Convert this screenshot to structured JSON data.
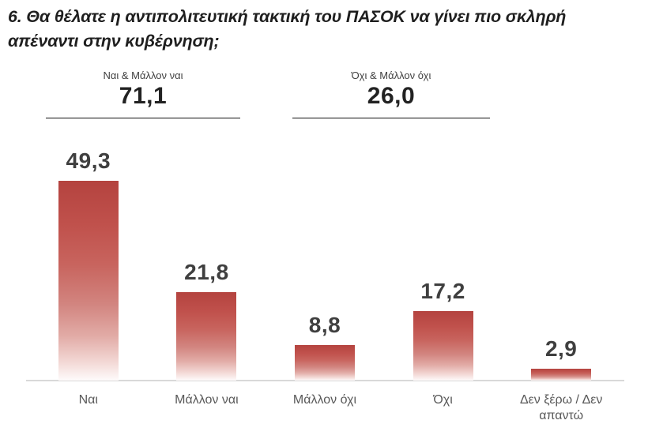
{
  "question": {
    "title": "6. Θα θέλατε η αντιπολιτευτική τακτική του ΠΑΣΟΚ να γίνει πιο σκληρή απέναντι στην κυβέρνηση;"
  },
  "groups": [
    {
      "label": "Ναι & Μάλλον ναι",
      "value": "71,1"
    },
    {
      "label": "Όχι & Μάλλον όχι",
      "value": "26,0"
    }
  ],
  "chart_data": {
    "type": "bar",
    "title": "6. Θα θέλατε η αντιπολιτευτική τακτική του ΠΑΣΟΚ να γίνει πιο σκληρή απέναντι στην κυβέρνηση;",
    "categories": [
      "Ναι",
      "Μάλλον ναι",
      "Μάλλον όχι",
      "Όχι",
      "Δεν ξέρω / Δεν απαντώ"
    ],
    "values": [
      49.3,
      21.8,
      8.8,
      17.2,
      2.9
    ],
    "value_labels": [
      "49,3",
      "21,8",
      "8,8",
      "17,2",
      "2,9"
    ],
    "aggregates": [
      {
        "label": "Ναι & Μάλλον ναι",
        "value": 71.1,
        "covers": [
          "Ναι",
          "Μάλλον ναι"
        ]
      },
      {
        "label": "Όχι & Μάλλον όχι",
        "value": 26.0,
        "covers": [
          "Μάλλον όχι",
          "Όχι"
        ]
      }
    ],
    "xlabel": "",
    "ylabel": "",
    "ylim": [
      0,
      55
    ],
    "grid": false,
    "legend": "none",
    "bar_color_top": "#b4433f",
    "bar_color_mid": "#c0504d",
    "bar_color_bottom": "#fefbfb",
    "axis_line_color": "#d9d9d9",
    "value_label_color": "#3f3f3f",
    "category_label_color": "#595959"
  }
}
